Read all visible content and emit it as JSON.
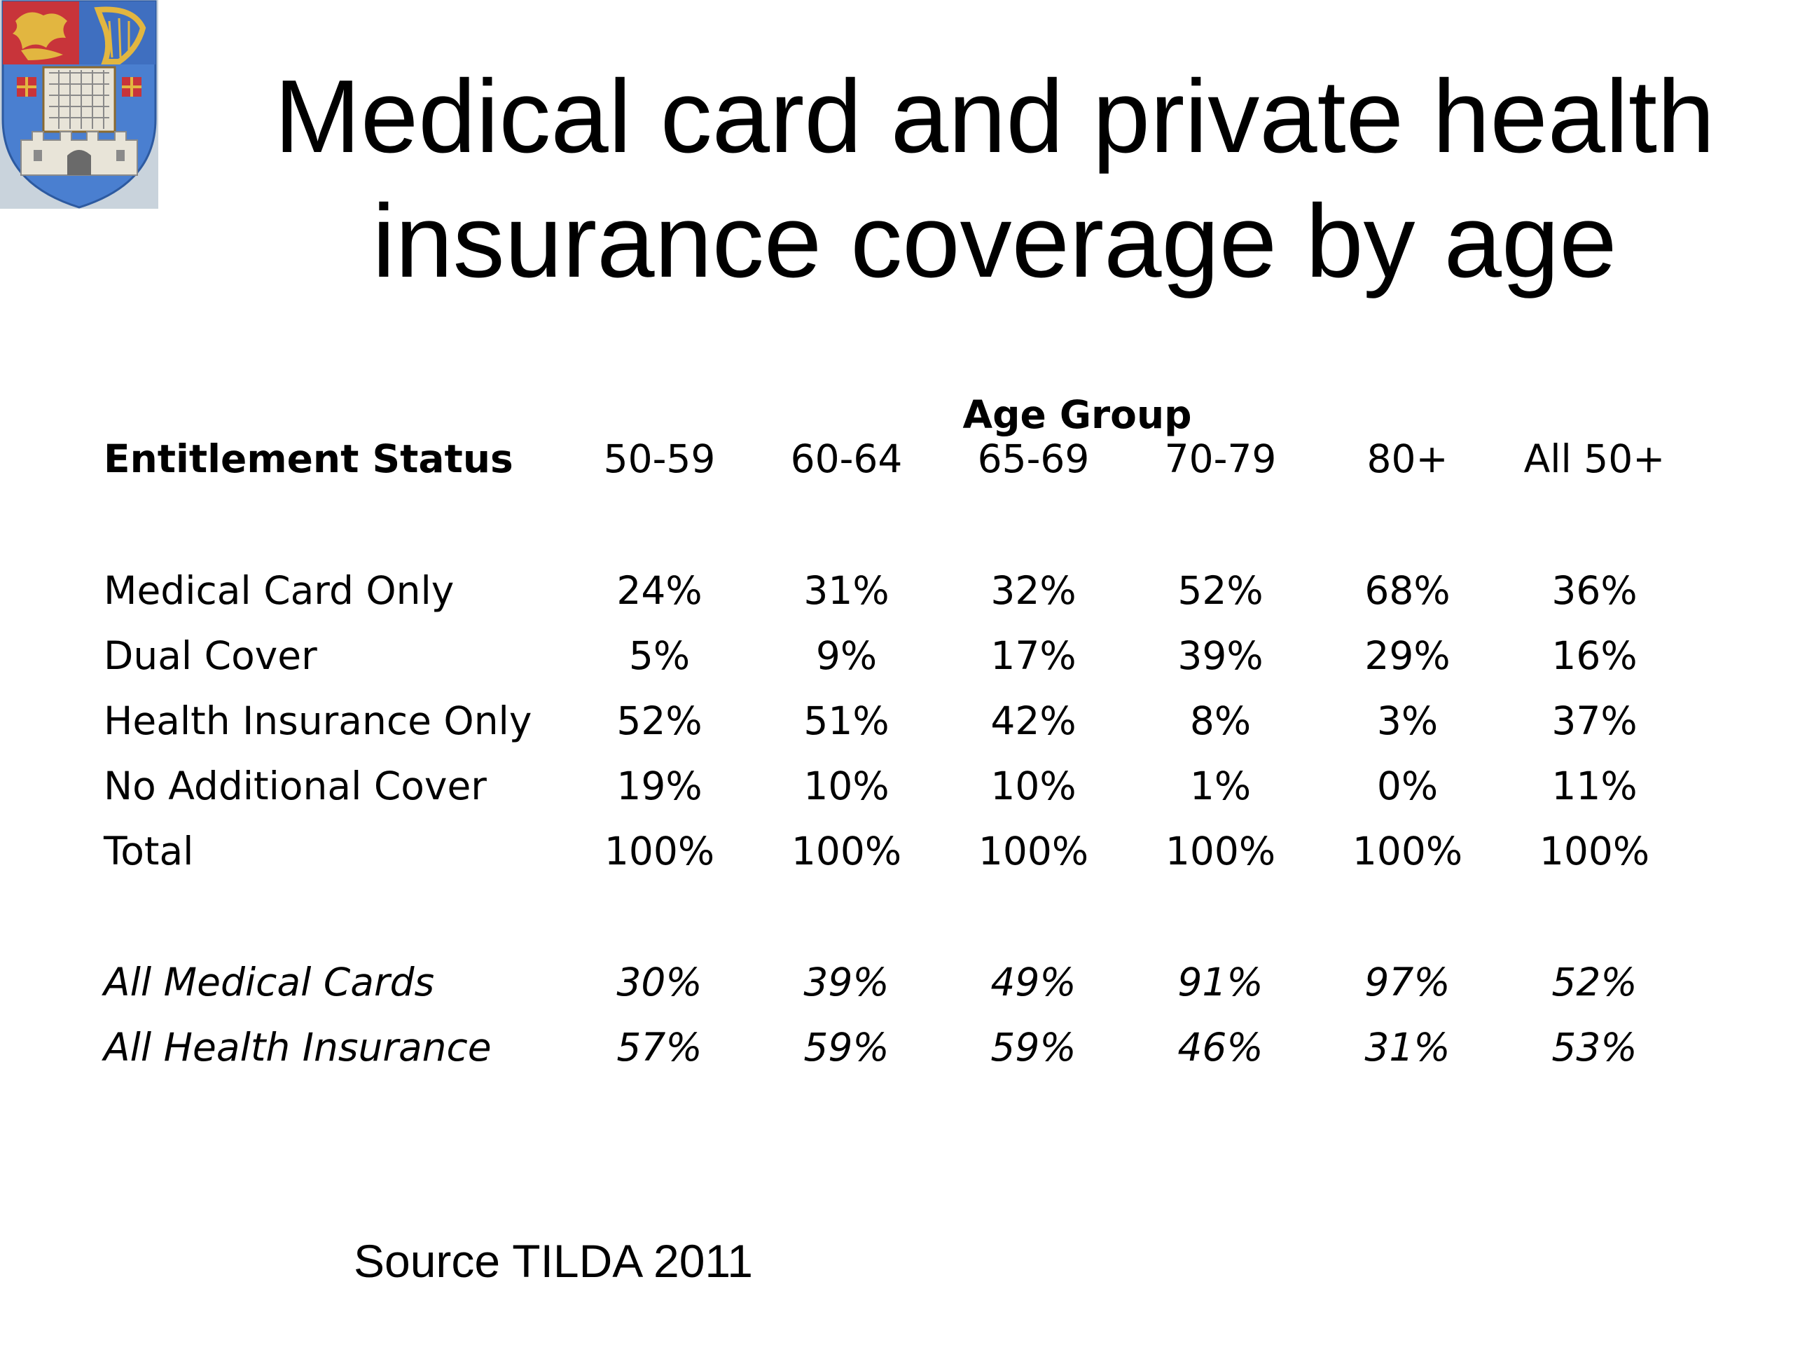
{
  "title": {
    "line1": "Medical card and private health",
    "line2": "insurance coverage by age"
  },
  "logo": {
    "icon": "college-crest-icon",
    "colors": {
      "shield": "#4a7fd0",
      "gold": "#e2b640",
      "red": "#c8343a",
      "castle": "#e8e4d8"
    }
  },
  "table": {
    "group_label": "Age Group",
    "header": {
      "label": "Entitlement Status",
      "columns": [
        "50-59",
        "60-64",
        "65-69",
        "70-79",
        "80+",
        "All 50+"
      ]
    },
    "rows": [
      {
        "label": "Medical Card Only",
        "values": [
          "24%",
          "31%",
          "32%",
          "52%",
          "68%",
          "36%"
        ]
      },
      {
        "label": "Dual Cover",
        "values": [
          "5%",
          "9%",
          "17%",
          "39%",
          "29%",
          "16%"
        ]
      },
      {
        "label": "Health Insurance Only",
        "values": [
          "52%",
          "51%",
          "42%",
          "8%",
          "3%",
          "37%"
        ]
      },
      {
        "label": "No Additional Cover",
        "values": [
          "19%",
          "10%",
          "10%",
          "1%",
          "0%",
          "11%"
        ]
      },
      {
        "label": "Total",
        "values": [
          "100%",
          "100%",
          "100%",
          "100%",
          "100%",
          "100%"
        ]
      }
    ],
    "summary_rows": [
      {
        "label": "All Medical Cards",
        "values": [
          "30%",
          "39%",
          "49%",
          "91%",
          "97%",
          "52%"
        ]
      },
      {
        "label": "All Health Insurance",
        "values": [
          "57%",
          "59%",
          "59%",
          "46%",
          "31%",
          "53%"
        ]
      }
    ]
  },
  "source": "Source TILDA 2011"
}
